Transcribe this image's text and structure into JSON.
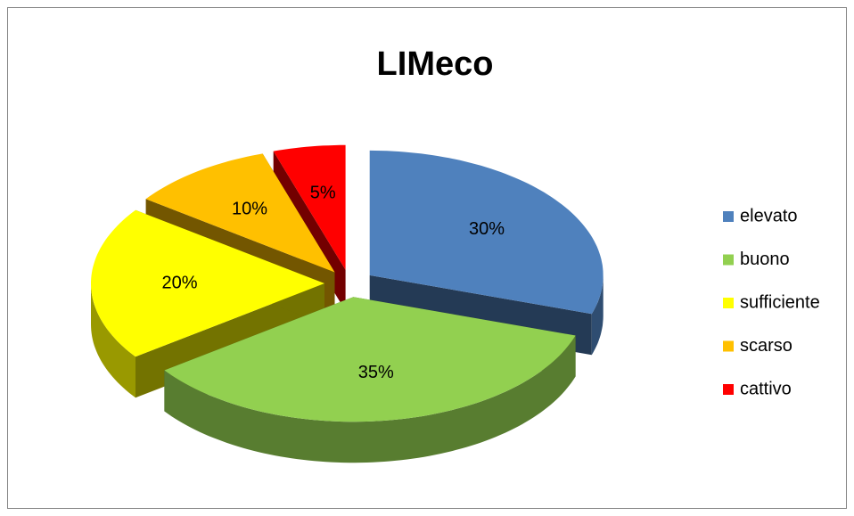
{
  "chart_data": {
    "type": "pie",
    "title": "LIMeco",
    "categories": [
      "elevato",
      "buono",
      "sufficiente",
      "scarso",
      "cattivo"
    ],
    "values": [
      30,
      35,
      20,
      10,
      5
    ],
    "value_labels": [
      "30%",
      "35%",
      "20%",
      "10%",
      "5%"
    ],
    "colors": [
      "#4f81bd",
      "#92d050",
      "#ffff00",
      "#ffc000",
      "#ff0000"
    ],
    "legend": "right"
  }
}
